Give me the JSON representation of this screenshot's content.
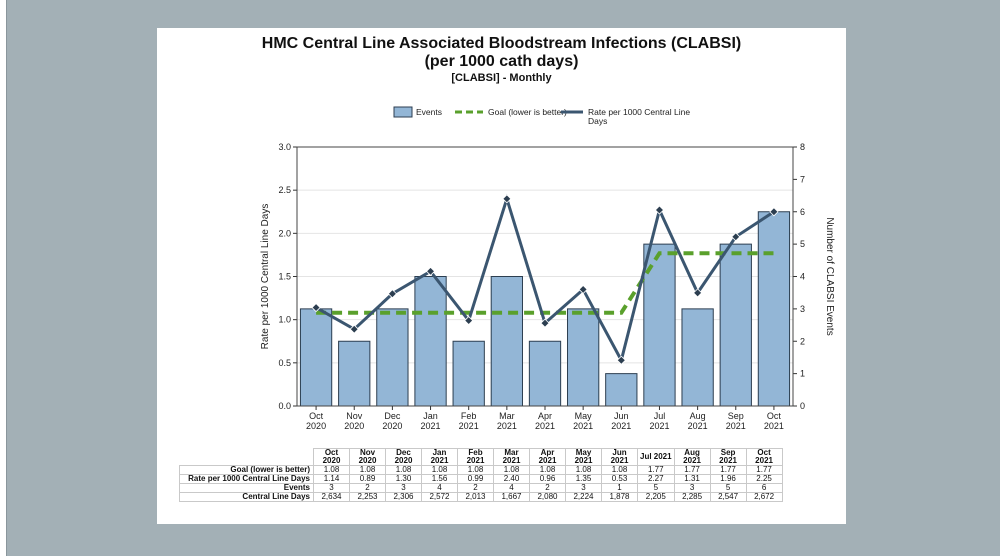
{
  "chart_data": {
    "type": "bar",
    "title": "HMC Central Line Associated Bloodstream Infections (CLABSI)",
    "title_line2": "(per 1000 cath days)",
    "subtitle": "[CLABSI] - Monthly",
    "categories": [
      "Oct\n2020",
      "Nov\n2020",
      "Dec\n2020",
      "Jan\n2021",
      "Feb\n2021",
      "Mar\n2021",
      "Apr\n2021",
      "May\n2021",
      "Jun\n2021",
      "Jul\n2021",
      "Aug\n2021",
      "Sep\n2021",
      "Oct\n2021"
    ],
    "ylabel": "Rate per 1000 Central Line Days",
    "y2label": "Number of CLABSI Events",
    "ylim": [
      0,
      3.0
    ],
    "y_ticks": [
      "0.0",
      "0.5",
      "1.0",
      "1.5",
      "2.0",
      "2.5",
      "3.0"
    ],
    "y2lim": [
      0,
      8
    ],
    "y2_ticks": [
      "0",
      "1",
      "2",
      "3",
      "4",
      "5",
      "6",
      "7",
      "8"
    ],
    "grid": true,
    "legend_position": "top",
    "series": [
      {
        "name": "Events",
        "type": "bar",
        "axis": "right",
        "color": "#93b6d6",
        "values": [
          3,
          2,
          3,
          4,
          2,
          4,
          2,
          3,
          1,
          5,
          3,
          5,
          6
        ]
      },
      {
        "name": "Goal (lower is better)",
        "type": "line",
        "style": "dashed",
        "axis": "left",
        "color": "#5aa02c",
        "values": [
          1.08,
          1.08,
          1.08,
          1.08,
          1.08,
          1.08,
          1.08,
          1.08,
          1.08,
          1.77,
          1.77,
          1.77,
          1.77
        ]
      },
      {
        "name": "Rate per 1000 Central Line Days",
        "type": "line",
        "axis": "left",
        "color": "#3b5670",
        "values": [
          1.14,
          0.89,
          1.3,
          1.56,
          0.99,
          2.4,
          0.96,
          1.35,
          0.53,
          2.27,
          1.31,
          1.96,
          2.25
        ]
      }
    ],
    "legend_labels": [
      "Events",
      "Goal (lower is better)",
      "Rate per 1000 Central Line\nDays"
    ]
  },
  "table": {
    "columns": [
      "Oct\n2020",
      "Nov\n2020",
      "Dec\n2020",
      "Jan\n2021",
      "Feb\n2021",
      "Mar\n2021",
      "Apr\n2021",
      "May\n2021",
      "Jun\n2021",
      "Jul 2021",
      "Aug\n2021",
      "Sep\n2021",
      "Oct\n2021"
    ],
    "rows": [
      {
        "label": "Goal (lower is better)",
        "values": [
          "1.08",
          "1.08",
          "1.08",
          "1.08",
          "1.08",
          "1.08",
          "1.08",
          "1.08",
          "1.08",
          "1.77",
          "1.77",
          "1.77",
          "1.77"
        ]
      },
      {
        "label": "Rate per 1000 Central Line Days",
        "values": [
          "1.14",
          "0.89",
          "1.30",
          "1.56",
          "0.99",
          "2.40",
          "0.96",
          "1.35",
          "0.53",
          "2.27",
          "1.31",
          "1.96",
          "2.25"
        ]
      },
      {
        "label": "Events",
        "values": [
          "3",
          "2",
          "3",
          "4",
          "2",
          "4",
          "2",
          "3",
          "1",
          "5",
          "3",
          "5",
          "6"
        ]
      },
      {
        "label": "Central Line Days",
        "values": [
          "2,634",
          "2,253",
          "2,306",
          "2,572",
          "2,013",
          "1,667",
          "2,080",
          "2,224",
          "1,878",
          "2,205",
          "2,285",
          "2,547",
          "2,672"
        ]
      }
    ]
  }
}
